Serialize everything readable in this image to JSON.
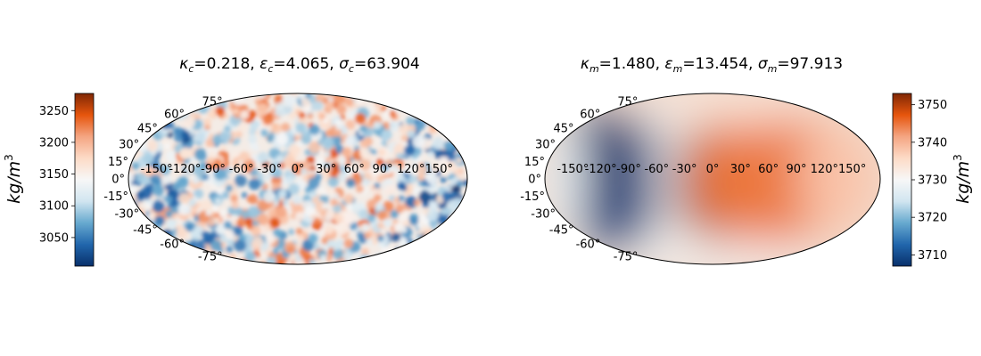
{
  "chart_data": [
    {
      "type": "heatmap",
      "projection": "mollweide",
      "title_parts": [
        {
          "sym": "κ",
          "sub": "c",
          "value": "0.218"
        },
        {
          "sym": "ε",
          "sub": "c",
          "value": "4.065"
        },
        {
          "sym": "σ",
          "sub": "c",
          "value": "63.904"
        }
      ],
      "lat_ticks": [
        "75°",
        "60°",
        "45°",
        "30°",
        "15°",
        "0°",
        "-15°",
        "-30°",
        "-45°",
        "-60°",
        "-75°"
      ],
      "lon_ticks": [
        "-150°",
        "-120°",
        "-90°",
        "-60°",
        "-30°",
        "0°",
        "30°",
        "60°",
        "90°",
        "120°",
        "150°"
      ],
      "field": "small-scale random variation",
      "colorbar": {
        "position": "left",
        "label": "kg/m",
        "label_sup": "3",
        "ticks": [
          3050,
          3100,
          3150,
          3200,
          3250
        ],
        "vmin": 3005,
        "vmax": 3277,
        "colormap": [
          "#08306b",
          "#2166ac",
          "#67a9cf",
          "#d1e5f0",
          "#f7f7f7",
          "#fddbc7",
          "#f4a582",
          "#e6550d",
          "#7f2704"
        ]
      }
    },
    {
      "type": "heatmap",
      "projection": "mollweide",
      "title_parts": [
        {
          "sym": "κ",
          "sub": "m",
          "value": "1.480"
        },
        {
          "sym": "ε",
          "sub": "m",
          "value": "13.454"
        },
        {
          "sym": "σ",
          "sub": "m",
          "value": "97.913"
        }
      ],
      "lat_ticks": [
        "75°",
        "60°",
        "45°",
        "30°",
        "15°",
        "0°",
        "-15°",
        "-30°",
        "-45°",
        "-60°",
        "-75°"
      ],
      "lon_ticks": [
        "-150°",
        "-120°",
        "-90°",
        "-60°",
        "-30°",
        "0°",
        "30°",
        "60°",
        "90°",
        "120°",
        "150°"
      ],
      "field": "large-scale smooth, low near lon -100°, high near lon 20°",
      "colorbar": {
        "position": "right",
        "label": "kg/m",
        "label_sup": "3",
        "ticks": [
          3710,
          3720,
          3730,
          3740,
          3750
        ],
        "vmin": 3707,
        "vmax": 3753,
        "colormap": [
          "#08306b",
          "#2166ac",
          "#67a9cf",
          "#d1e5f0",
          "#f7f7f7",
          "#fddbc7",
          "#f4a582",
          "#e6550d",
          "#7f2704"
        ]
      }
    }
  ]
}
